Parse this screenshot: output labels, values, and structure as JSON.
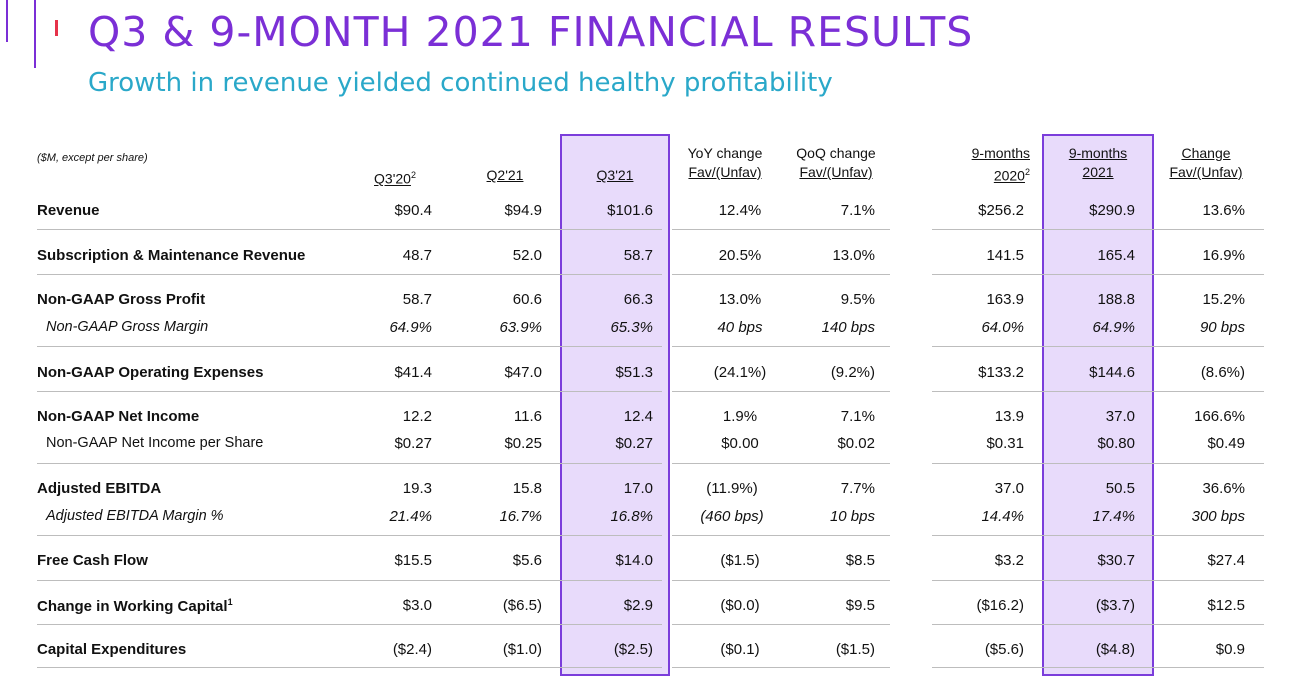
{
  "title": "Q3 & 9-MONTH 2021 FINANCIAL RESULTS",
  "subtitle": "Growth in revenue yielded continued healthy profitability",
  "table": {
    "units": "($M, except per share)",
    "headers": {
      "q3_20": "Q3'20",
      "q3_20_sup": "2",
      "q2_21": "Q2'21",
      "q3_21": "Q3'21",
      "yoy_line1": "YoY change",
      "yoy_line2": "Fav/(Unfav)",
      "qoq_line1": "QoQ change",
      "qoq_line2": "Fav/(Unfav)",
      "nm2020_line1": "9-months",
      "nm2020_line2": "2020",
      "nm2020_sup": "2",
      "nm2021_line1": "9-months",
      "nm2021_line2": "2021",
      "chg_line1": "Change",
      "chg_line2": "Fav/(Unfav)"
    },
    "rows": [
      {
        "label": "Revenue",
        "values": [
          "$90.4",
          "$94.9",
          "$101.6",
          "12.4%",
          "7.1%",
          "$256.2",
          "$290.9",
          "13.6%"
        ]
      },
      {
        "label": "Subscription & Maintenance Revenue",
        "values": [
          "48.7",
          "52.0",
          "58.7",
          "20.5%",
          "13.0%",
          "141.5",
          "165.4",
          "16.9%"
        ]
      },
      {
        "label": "Non-GAAP Gross Profit",
        "values": [
          "58.7",
          "60.6",
          "66.3",
          "13.0%",
          "9.5%",
          "163.9",
          "188.8",
          "15.2%"
        ]
      },
      {
        "label": "Non-GAAP Gross Margin",
        "values": [
          "64.9%",
          "63.9%",
          "65.3%",
          "40 bps",
          "140 bps",
          "64.0%",
          "64.9%",
          "90 bps"
        ]
      },
      {
        "label": "Non-GAAP Operating Expenses",
        "values": [
          "$41.4",
          "$47.0",
          "$51.3",
          "(24.1%)",
          "(9.2%)",
          "$133.2",
          "$144.6",
          "(8.6%)"
        ]
      },
      {
        "label": "Non-GAAP Net Income",
        "values": [
          "12.2",
          "11.6",
          "12.4",
          "1.9%",
          "7.1%",
          "13.9",
          "37.0",
          "166.6%"
        ]
      },
      {
        "label": "Non-GAAP Net Income per Share",
        "values": [
          "$0.27",
          "$0.25",
          "$0.27",
          "$0.00",
          "$0.02",
          "$0.31",
          "$0.80",
          "$0.49"
        ]
      },
      {
        "label": "Adjusted EBITDA",
        "values": [
          "19.3",
          "15.8",
          "17.0",
          "(11.9%)",
          "7.7%",
          "37.0",
          "50.5",
          "36.6%"
        ]
      },
      {
        "label": "Adjusted EBITDA Margin %",
        "values": [
          "21.4%",
          "16.7%",
          "16.8%",
          "(460 bps)",
          "10 bps",
          "14.4%",
          "17.4%",
          "300 bps"
        ]
      },
      {
        "label": "Free Cash Flow",
        "values": [
          "$15.5",
          "$5.6",
          "$14.0",
          "($1.5)",
          "$8.5",
          "$3.2",
          "$30.7",
          "$27.4"
        ]
      },
      {
        "label": "Change in Working Capital",
        "label_sup": "1",
        "values": [
          "$3.0",
          "($6.5)",
          "$2.9",
          "($0.0)",
          "$9.5",
          "($16.2)",
          "($3.7)",
          "$12.5"
        ]
      },
      {
        "label": "Capital Expenditures",
        "values": [
          "($2.4)",
          "($1.0)",
          "($2.5)",
          "($0.1)",
          "($1.5)",
          "($5.6)",
          "($4.8)",
          "$0.9"
        ]
      }
    ]
  },
  "colors": {
    "accent": "#7b2fd6",
    "subtitle": "#2aa8c9",
    "highlight": "#e8dbfb",
    "tick": "#e6324a"
  }
}
